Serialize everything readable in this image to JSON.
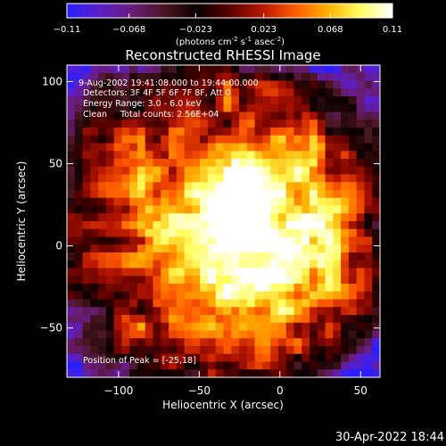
{
  "colorbar": {
    "ticks": [
      "-0.11",
      "-0.068",
      "-0.023",
      "0.023",
      "0.068",
      "0.11"
    ],
    "tick_values": [
      -0.11,
      -0.068,
      -0.023,
      0.023,
      0.068,
      0.11
    ],
    "range": [
      -0.11,
      0.11
    ],
    "unit_prefix": "(photons cm",
    "unit_sup1": "-2",
    "unit_mid1": " s",
    "unit_sup2": "-1",
    "unit_mid2": " asec",
    "unit_sup3": "-2",
    "unit_suffix": ")",
    "colormap": [
      "#2b1fff",
      "#5a1fc8",
      "#6a1c7e",
      "#4a1620",
      "#0a0000",
      "#5a0000",
      "#b81500",
      "#ff5a00",
      "#ffb000",
      "#ffff60",
      "#ffffff"
    ]
  },
  "chart_data": {
    "type": "heatmap",
    "title": "Reconstructed RHESSI Image",
    "xlabel": "Heliocentric X (arcsec)",
    "ylabel": "Heliocentric Y (arcsec)",
    "xlim": [
      -132,
      62
    ],
    "ylim": [
      -80,
      110
    ],
    "x_ticks": [
      -100,
      -50,
      0,
      50
    ],
    "y_ticks": [
      -50,
      0,
      50,
      100
    ],
    "x_tick_labels": [
      "−100",
      "−50",
      "0",
      "50"
    ],
    "y_tick_labels": [
      "−50",
      "0",
      "50",
      "100"
    ],
    "peak": [
      -25,
      18
    ],
    "annotations": [
      "9-Aug-2002 19:41:08.000 to 19:44:00.000",
      "Detectors: 3F 4F 5F 6F 7F 8F, Att 0",
      "Energy Range: 3.0 - 6.0 keV",
      "Clean     Total counts: 2.56E+04"
    ],
    "peak_label": "Position of Peak = [-25,18]"
  },
  "footer": {
    "timestamp": "30-Apr-2022 18:44"
  }
}
